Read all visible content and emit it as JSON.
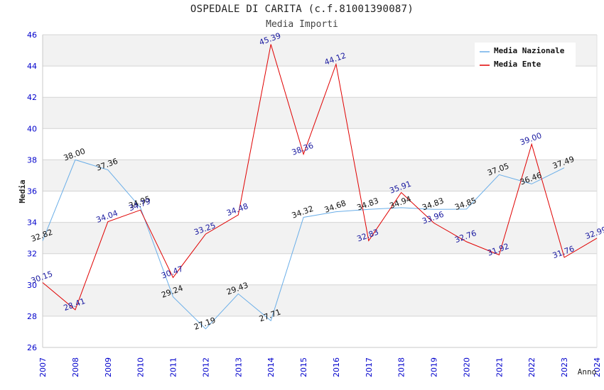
{
  "chart_data": {
    "type": "line",
    "title": "OSPEDALE DI CARITA (c.f.81001390087)",
    "subtitle": "Media Importi",
    "xlabel": "Anno",
    "ylabel": "Media",
    "ylim": [
      26,
      46
    ],
    "yticks": [
      "26",
      "28",
      "30",
      "32",
      "34",
      "36",
      "38",
      "40",
      "42",
      "44",
      "46"
    ],
    "categories": [
      "2007",
      "2008",
      "2009",
      "2010",
      "2011",
      "2012",
      "2013",
      "2014",
      "2015",
      "2016",
      "2017",
      "2018",
      "2019",
      "2020",
      "2021",
      "2022",
      "2023",
      "2024"
    ],
    "series": [
      {
        "name": "Media Nazionale",
        "color": "#6aaee8",
        "values": [
          32.82,
          38.0,
          37.36,
          34.95,
          29.24,
          27.19,
          29.43,
          27.71,
          34.32,
          34.68,
          34.83,
          34.94,
          34.83,
          34.85,
          37.05,
          36.46,
          37.49,
          null
        ],
        "labels": [
          "32.82",
          "38.00",
          "37.36",
          "34.95",
          "29.24",
          "27.19",
          "29.43",
          "27.71",
          "34.32",
          "34.68",
          "34.83",
          "34.94",
          "34.83",
          "34.85",
          "37.05",
          "36.46",
          "37.49",
          ""
        ]
      },
      {
        "name": "Media Ente",
        "color": "#e00000",
        "values": [
          30.15,
          28.41,
          34.04,
          34.79,
          30.47,
          33.25,
          34.48,
          45.39,
          38.36,
          44.12,
          32.83,
          35.91,
          33.96,
          32.76,
          31.92,
          39.0,
          31.76,
          32.99
        ],
        "labels": [
          "30.15",
          "28.41",
          "34.04",
          "34.79",
          "30.47",
          "33.25",
          "34.48",
          "45.39",
          "38.36",
          "44.12",
          "32.83",
          "35.91",
          "33.96",
          "32.76",
          "31.92",
          "39.00",
          "31.76",
          "32.99"
        ]
      }
    ],
    "legend_position": "top-right",
    "grid": true
  }
}
